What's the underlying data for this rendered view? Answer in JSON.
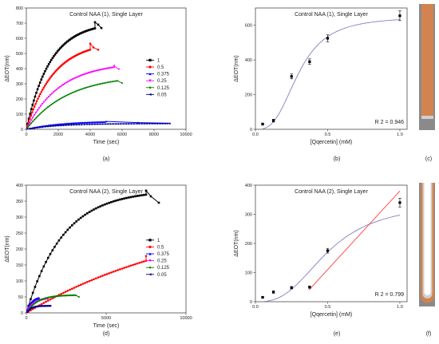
{
  "panels": {
    "a": {
      "label": "(a)"
    },
    "b": {
      "label": "(b)"
    },
    "c": {
      "label": "(c)"
    },
    "d": {
      "label": "(d)"
    },
    "e": {
      "label": "(e)"
    },
    "f": {
      "label": "(f)"
    }
  },
  "chart_data": [
    {
      "id": "a",
      "type": "scatter",
      "title": "Control NAA (1), Single Layer",
      "xlabel": "Time (sec)",
      "ylabel": "ΔEOT(nm)",
      "xlim": [
        0,
        10000
      ],
      "ylim": [
        0,
        800
      ],
      "xticks": [
        0,
        2000,
        4000,
        6000,
        8000,
        10000
      ],
      "yticks": [
        0,
        100,
        200,
        300,
        400,
        500,
        600,
        700,
        800
      ],
      "legend": "right",
      "series": [
        {
          "name": "1",
          "color": "#000000",
          "marker": "square",
          "curve": {
            "a": 706,
            "tau": 1500,
            "end": 4300
          },
          "tail": [
            [
              4300,
              706
            ],
            [
              4500,
              690
            ],
            [
              4700,
              668
            ]
          ]
        },
        {
          "name": "0.5",
          "color": "#ff0000",
          "marker": "circle",
          "curve": {
            "a": 580,
            "tau": 1700,
            "end": 4000
          },
          "tail": [
            [
              4000,
              565
            ],
            [
              4200,
              540
            ],
            [
              4500,
              525
            ]
          ]
        },
        {
          "name": "0.375",
          "color": "#0000ff",
          "marker": "triangle",
          "curve": {
            "a": 55,
            "tau": 2200,
            "end": 5000
          },
          "tail": [
            [
              5000,
              52
            ],
            [
              7000,
              44
            ],
            [
              9000,
              40
            ]
          ]
        },
        {
          "name": "0.25",
          "color": "#ff00ff",
          "marker": "triangle-down",
          "curve": {
            "a": 440,
            "tau": 2100,
            "end": 5500
          },
          "tail": [
            [
              5500,
              418
            ],
            [
              5800,
              395
            ]
          ]
        },
        {
          "name": "0.125",
          "color": "#008000",
          "marker": "diamond",
          "curve": {
            "a": 360,
            "tau": 2600,
            "end": 5700
          },
          "tail": [
            [
              5700,
              320
            ],
            [
              6000,
              305
            ]
          ]
        },
        {
          "name": "0.05",
          "color": "#00008b",
          "marker": "triangle-left",
          "curve": {
            "a": 38,
            "tau": 2000,
            "end": 9000
          },
          "tail": []
        }
      ]
    },
    {
      "id": "b",
      "type": "scatter",
      "title": "Control NAA (1), Single Layer",
      "xlabel": "[Qqercetin] (mM)",
      "ylabel": "ΔEOT(nm)",
      "xlim": [
        0,
        1.05
      ],
      "ylim": [
        0,
        700
      ],
      "xticks": [
        0.0,
        0.5,
        1.0
      ],
      "yticks": [
        0,
        200,
        400,
        600
      ],
      "annotation": "R 2 = 0.946",
      "points": [
        {
          "x": 0.05,
          "y": 30,
          "err": 6
        },
        {
          "x": 0.125,
          "y": 50,
          "err": 8
        },
        {
          "x": 0.25,
          "y": 305,
          "err": 14
        },
        {
          "x": 0.375,
          "y": 390,
          "err": 16
        },
        {
          "x": 0.5,
          "y": 525,
          "err": 20
        },
        {
          "x": 1.0,
          "y": 655,
          "err": 28
        }
      ],
      "fit": {
        "type": "sigmoid",
        "color": "#8080c0",
        "max": 650,
        "k": 0.3,
        "n": 3
      },
      "inset": "tube-full"
    },
    {
      "id": "d",
      "type": "scatter",
      "title": "Control NAA (2), Single Layer",
      "xlabel": "Time (sec)",
      "ylabel": "ΔEOT(nm)",
      "xlim": [
        0,
        10000
      ],
      "ylim": [
        0,
        400
      ],
      "xticks": [
        0,
        5000,
        10000
      ],
      "yticks": [
        0,
        50,
        100,
        150,
        200,
        250,
        300,
        350,
        400
      ],
      "legend": "right",
      "series": [
        {
          "name": "1",
          "color": "#000000",
          "marker": "square",
          "curve": {
            "a": 385,
            "tau": 2300,
            "end": 7500
          },
          "tail": [
            [
              7500,
              383
            ],
            [
              7800,
              365
            ],
            [
              8300,
              345
            ]
          ]
        },
        {
          "name": "0.5",
          "color": "#ff0000",
          "marker": "circle",
          "curve": {
            "a": 330,
            "tau": 11000,
            "end": 7500
          },
          "tail": [
            [
              7500,
              178
            ]
          ]
        },
        {
          "name": "0.375",
          "color": "#0000ff",
          "marker": "triangle",
          "curve": {
            "a": 50,
            "tau": 300,
            "end": 800
          },
          "tail": []
        },
        {
          "name": "0.25",
          "color": "#ff00ff",
          "marker": "triangle-down",
          "curve": {
            "a": 48,
            "tau": 500,
            "end": 1400
          },
          "tail": []
        },
        {
          "name": "0.125",
          "color": "#008000",
          "marker": "diamond",
          "curve": {
            "a": 56,
            "tau": 700,
            "end": 3100
          },
          "tail": [
            [
              3100,
              55
            ],
            [
              3300,
              50
            ]
          ]
        },
        {
          "name": "0.05",
          "color": "#00008b",
          "marker": "triangle-left",
          "curve": {
            "a": 22,
            "tau": 250,
            "end": 1500
          },
          "tail": []
        }
      ]
    },
    {
      "id": "e",
      "type": "scatter",
      "title": "Control NAA (2), Single Layer",
      "xlabel": "[Qqercetin] (mM)",
      "ylabel": "ΔEOT(nm)",
      "xlim": [
        0,
        1.05
      ],
      "ylim": [
        0,
        400
      ],
      "xticks": [
        0.0,
        0.5,
        1.0
      ],
      "yticks": [
        0,
        100,
        200,
        300,
        400
      ],
      "annotation": "R 2 = 0.799",
      "points": [
        {
          "x": 0.05,
          "y": 15,
          "err": 3
        },
        {
          "x": 0.125,
          "y": 33,
          "err": 4
        },
        {
          "x": 0.25,
          "y": 48,
          "err": 4
        },
        {
          "x": 0.375,
          "y": 50,
          "err": 4
        },
        {
          "x": 0.5,
          "y": 175,
          "err": 8
        },
        {
          "x": 1.0,
          "y": 340,
          "err": 15
        }
      ],
      "fit": {
        "type": "sigmoid",
        "color": "#8080c0",
        "max": 340,
        "k": 0.5,
        "n": 2.8
      },
      "line": {
        "color": "#ff4040",
        "x1": 0.37,
        "y1": 40,
        "x2": 1.0,
        "y2": 380
      },
      "inset": "tube-hollow"
    }
  ]
}
